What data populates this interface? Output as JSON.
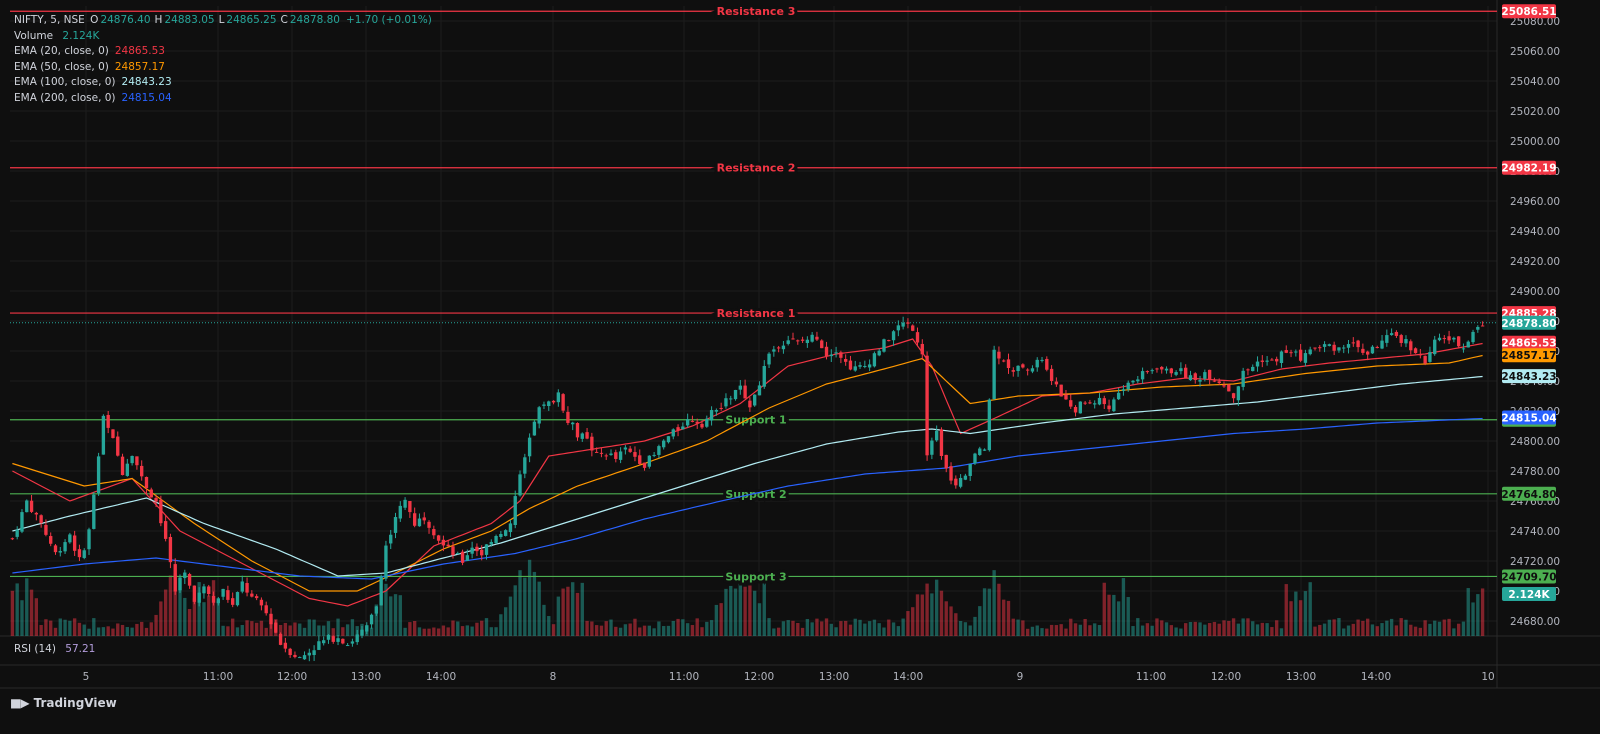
{
  "header": {
    "symbol": "NIFTY, 5, NSE",
    "ohlc": [
      {
        "k": "O",
        "v": "24876.40"
      },
      {
        "k": "H",
        "v": "24883.05"
      },
      {
        "k": "L",
        "v": "24865.25"
      },
      {
        "k": "C",
        "v": "24878.80"
      },
      {
        "k": "",
        "v": "+1.70 (+0.01%)"
      }
    ],
    "volume_label": "Volume",
    "volume_value": "2.124K",
    "indicators": [
      {
        "label": "EMA (20, close, 0)",
        "value": "24865.53",
        "color": "#f23645"
      },
      {
        "label": "EMA (50, close, 0)",
        "value": "24857.17",
        "color": "#ff9800"
      },
      {
        "label": "EMA (100, close, 0)",
        "value": "24843.23",
        "color": "#b2ebf2"
      },
      {
        "label": "EMA (200, close, 0)",
        "value": "24815.04",
        "color": "#2962ff"
      }
    ],
    "rsi_label": "RSI (14)",
    "rsi_value": "57.21"
  },
  "brand": "TradingView",
  "colors": {
    "up": "#26a69a",
    "down": "#f23645",
    "resistance": "#f23645",
    "support": "#4caf50",
    "ema20": "#f23645",
    "ema50": "#ff9800",
    "ema100": "#b2ebf2",
    "ema200": "#2962ff"
  },
  "chart_data": {
    "type": "candlestick",
    "ylim": [
      24670,
      25090
    ],
    "y_ticks": [
      "25080.00",
      "25060.00",
      "25040.00",
      "25020.00",
      "25000.00",
      "24980.00",
      "24960.00",
      "24940.00",
      "24920.00",
      "24900.00",
      "24880.00",
      "24860.00",
      "24840.00",
      "24820.00",
      "24800.00",
      "24780.00",
      "24760.00",
      "24740.00",
      "24720.00",
      "24700.00",
      "24680.00"
    ],
    "x_ticks": [
      "5",
      "11:00",
      "12:00",
      "13:00",
      "14:00",
      "8",
      "11:00",
      "12:00",
      "13:00",
      "14:00",
      "9",
      "11:00",
      "12:00",
      "13:00",
      "14:00",
      "10"
    ],
    "levels": [
      {
        "name": "Resistance 3",
        "value": 25086.51,
        "kind": "resistance",
        "tag": "25086.51"
      },
      {
        "name": "Resistance 2",
        "value": 24982.19,
        "kind": "resistance",
        "tag": "24982.19"
      },
      {
        "name": "Resistance 1",
        "value": 24885.28,
        "kind": "resistance",
        "tag": "24885.28"
      },
      {
        "name": "Support 1",
        "value": 24814.19,
        "kind": "support",
        "tag": "24814.19"
      },
      {
        "name": "Support 2",
        "value": 24764.8,
        "kind": "support",
        "tag": "24764.80"
      },
      {
        "name": "Support 3",
        "value": 24709.7,
        "kind": "support",
        "tag": "24709.70"
      }
    ],
    "price_tags": [
      {
        "value": 24878.8,
        "text": "24878.80",
        "color": "#26a69a"
      },
      {
        "value": 24865.53,
        "text": "24865.53",
        "color": "#f23645"
      },
      {
        "value": 24857.17,
        "text": "24857.17",
        "color": "#ff9800"
      },
      {
        "value": 24843.23,
        "text": "24843.23",
        "color": "#b2ebf2"
      },
      {
        "value": 24815.04,
        "text": "24815.04",
        "color": "#2962ff"
      }
    ],
    "volume_tag": "2.124K",
    "current_price": 24878.8,
    "close_path": [
      [
        0,
        24735
      ],
      [
        3,
        24760
      ],
      [
        6,
        24745
      ],
      [
        9,
        24725
      ],
      [
        12,
        24738
      ],
      [
        14,
        24720
      ],
      [
        16,
        24740
      ],
      [
        19,
        24815
      ],
      [
        21,
        24800
      ],
      [
        23,
        24780
      ],
      [
        25,
        24793
      ],
      [
        27,
        24775
      ],
      [
        30,
        24760
      ],
      [
        32,
        24735
      ],
      [
        34,
        24700
      ],
      [
        36,
        24715
      ],
      [
        38,
        24690
      ],
      [
        40,
        24705
      ],
      [
        42,
        24695
      ],
      [
        44,
        24700
      ],
      [
        46,
        24690
      ],
      [
        48,
        24705
      ],
      [
        50,
        24695
      ],
      [
        52,
        24690
      ],
      [
        54,
        24680
      ],
      [
        56,
        24665
      ],
      [
        58,
        24660
      ],
      [
        60,
        24655
      ],
      [
        62,
        24660
      ],
      [
        64,
        24665
      ],
      [
        66,
        24668
      ],
      [
        68,
        24670
      ],
      [
        70,
        24665
      ],
      [
        72,
        24670
      ],
      [
        74,
        24675
      ],
      [
        76,
        24690
      ],
      [
        78,
        24730
      ],
      [
        80,
        24750
      ],
      [
        82,
        24760
      ],
      [
        84,
        24745
      ],
      [
        86,
        24750
      ],
      [
        88,
        24740
      ],
      [
        90,
        24730
      ],
      [
        92,
        24725
      ],
      [
        94,
        24720
      ],
      [
        96,
        24730
      ],
      [
        98,
        24725
      ],
      [
        100,
        24735
      ],
      [
        102,
        24740
      ],
      [
        104,
        24745
      ],
      [
        106,
        24780
      ],
      [
        108,
        24800
      ],
      [
        110,
        24820
      ],
      [
        112,
        24825
      ],
      [
        114,
        24830
      ],
      [
        116,
        24815
      ],
      [
        118,
        24805
      ],
      [
        120,
        24800
      ],
      [
        122,
        24790
      ],
      [
        124,
        24792
      ],
      [
        126,
        24788
      ],
      [
        128,
        24794
      ],
      [
        130,
        24790
      ],
      [
        132,
        24785
      ],
      [
        134,
        24790
      ],
      [
        136,
        24800
      ],
      [
        138,
        24805
      ],
      [
        140,
        24812
      ],
      [
        142,
        24815
      ],
      [
        144,
        24812
      ],
      [
        146,
        24818
      ],
      [
        148,
        24822
      ],
      [
        150,
        24830
      ],
      [
        152,
        24835
      ],
      [
        154,
        24825
      ],
      [
        156,
        24840
      ],
      [
        158,
        24858
      ],
      [
        160,
        24865
      ],
      [
        162,
        24868
      ],
      [
        164,
        24865
      ],
      [
        166,
        24868
      ],
      [
        168,
        24870
      ],
      [
        170,
        24858
      ],
      [
        172,
        24862
      ],
      [
        174,
        24852
      ],
      [
        176,
        24848
      ],
      [
        178,
        24850
      ],
      [
        180,
        24858
      ],
      [
        182,
        24865
      ],
      [
        184,
        24873
      ],
      [
        186,
        24878
      ],
      [
        188,
        24876
      ],
      [
        190,
        24860
      ],
      [
        191,
        24790
      ],
      [
        193,
        24805
      ],
      [
        195,
        24780
      ],
      [
        197,
        24770
      ],
      [
        199,
        24775
      ],
      [
        201,
        24790
      ],
      [
        203,
        24795
      ],
      [
        205,
        24860
      ],
      [
        207,
        24855
      ],
      [
        209,
        24845
      ],
      [
        211,
        24852
      ],
      [
        213,
        24848
      ],
      [
        215,
        24855
      ],
      [
        217,
        24838
      ],
      [
        219,
        24832
      ],
      [
        221,
        24820
      ],
      [
        223,
        24824
      ],
      [
        225,
        24826
      ],
      [
        227,
        24828
      ],
      [
        229,
        24822
      ],
      [
        231,
        24832
      ],
      [
        233,
        24838
      ],
      [
        235,
        24842
      ],
      [
        237,
        24846
      ],
      [
        239,
        24850
      ],
      [
        241,
        24846
      ],
      [
        243,
        24848
      ],
      [
        245,
        24844
      ],
      [
        247,
        24840
      ],
      [
        249,
        24846
      ],
      [
        251,
        24842
      ],
      [
        253,
        24838
      ],
      [
        255,
        24830
      ],
      [
        257,
        24845
      ],
      [
        259,
        24850
      ],
      [
        261,
        24855
      ],
      [
        263,
        24852
      ],
      [
        265,
        24858
      ],
      [
        267,
        24860
      ],
      [
        269,
        24856
      ],
      [
        271,
        24860
      ],
      [
        273,
        24862
      ],
      [
        275,
        24864
      ],
      [
        277,
        24862
      ],
      [
        279,
        24866
      ],
      [
        281,
        24862
      ],
      [
        283,
        24858
      ],
      [
        285,
        24864
      ],
      [
        287,
        24868
      ],
      [
        289,
        24870
      ],
      [
        291,
        24866
      ],
      [
        293,
        24860
      ],
      [
        295,
        24852
      ],
      [
        297,
        24865
      ],
      [
        299,
        24870
      ],
      [
        301,
        24866
      ],
      [
        303,
        24864
      ],
      [
        305,
        24872
      ],
      [
        307,
        24878
      ]
    ],
    "ema_paths": {
      "ema20": [
        [
          0,
          24780
        ],
        [
          12,
          24760
        ],
        [
          25,
          24775
        ],
        [
          35,
          24740
        ],
        [
          50,
          24715
        ],
        [
          62,
          24695
        ],
        [
          70,
          24690
        ],
        [
          78,
          24700
        ],
        [
          88,
          24730
        ],
        [
          100,
          24745
        ],
        [
          106,
          24760
        ],
        [
          112,
          24790
        ],
        [
          122,
          24795
        ],
        [
          132,
          24800
        ],
        [
          142,
          24810
        ],
        [
          152,
          24825
        ],
        [
          162,
          24850
        ],
        [
          172,
          24858
        ],
        [
          182,
          24862
        ],
        [
          188,
          24868
        ],
        [
          192,
          24850
        ],
        [
          198,
          24805
        ],
        [
          205,
          24815
        ],
        [
          215,
          24830
        ],
        [
          225,
          24832
        ],
        [
          235,
          24838
        ],
        [
          245,
          24842
        ],
        [
          255,
          24840
        ],
        [
          265,
          24848
        ],
        [
          275,
          24852
        ],
        [
          285,
          24855
        ],
        [
          295,
          24858
        ],
        [
          307,
          24865
        ]
      ],
      "ema50": [
        [
          0,
          24785
        ],
        [
          15,
          24770
        ],
        [
          25,
          24775
        ],
        [
          38,
          24745
        ],
        [
          50,
          24720
        ],
        [
          62,
          24700
        ],
        [
          72,
          24700
        ],
        [
          80,
          24712
        ],
        [
          90,
          24728
        ],
        [
          100,
          24740
        ],
        [
          108,
          24755
        ],
        [
          118,
          24770
        ],
        [
          132,
          24785
        ],
        [
          145,
          24800
        ],
        [
          158,
          24822
        ],
        [
          170,
          24838
        ],
        [
          182,
          24848
        ],
        [
          190,
          24855
        ],
        [
          200,
          24825
        ],
        [
          210,
          24830
        ],
        [
          225,
          24832
        ],
        [
          240,
          24836
        ],
        [
          255,
          24838
        ],
        [
          270,
          24845
        ],
        [
          285,
          24850
        ],
        [
          300,
          24852
        ],
        [
          307,
          24857
        ]
      ],
      "ema100": [
        [
          0,
          24740
        ],
        [
          12,
          24750
        ],
        [
          28,
          24762
        ],
        [
          40,
          24745
        ],
        [
          55,
          24728
        ],
        [
          68,
          24710
        ],
        [
          78,
          24712
        ],
        [
          90,
          24722
        ],
        [
          102,
          24732
        ],
        [
          112,
          24742
        ],
        [
          125,
          24755
        ],
        [
          140,
          24770
        ],
        [
          155,
          24785
        ],
        [
          170,
          24798
        ],
        [
          185,
          24806
        ],
        [
          192,
          24808
        ],
        [
          200,
          24805
        ],
        [
          215,
          24812
        ],
        [
          230,
          24818
        ],
        [
          245,
          24822
        ],
        [
          260,
          24826
        ],
        [
          275,
          24832
        ],
        [
          290,
          24838
        ],
        [
          307,
          24843
        ]
      ],
      "ema200": [
        [
          0,
          24712
        ],
        [
          15,
          24718
        ],
        [
          30,
          24722
        ],
        [
          45,
          24716
        ],
        [
          60,
          24710
        ],
        [
          75,
          24708
        ],
        [
          90,
          24718
        ],
        [
          105,
          24725
        ],
        [
          118,
          24735
        ],
        [
          132,
          24748
        ],
        [
          148,
          24760
        ],
        [
          162,
          24770
        ],
        [
          178,
          24778
        ],
        [
          195,
          24782
        ],
        [
          210,
          24790
        ],
        [
          225,
          24795
        ],
        [
          240,
          24800
        ],
        [
          255,
          24805
        ],
        [
          270,
          24808
        ],
        [
          285,
          24812
        ],
        [
          307,
          24815
        ]
      ]
    },
    "volume_ma_hint": "histogram",
    "volume_spikes": [
      [
        34,
        0.85
      ],
      [
        106,
        0.8
      ],
      [
        108,
        0.95
      ],
      [
        150,
        0.75
      ],
      [
        190,
        0.65
      ],
      [
        194,
        0.55
      ],
      [
        205,
        0.8
      ],
      [
        307,
        0.55
      ]
    ]
  }
}
